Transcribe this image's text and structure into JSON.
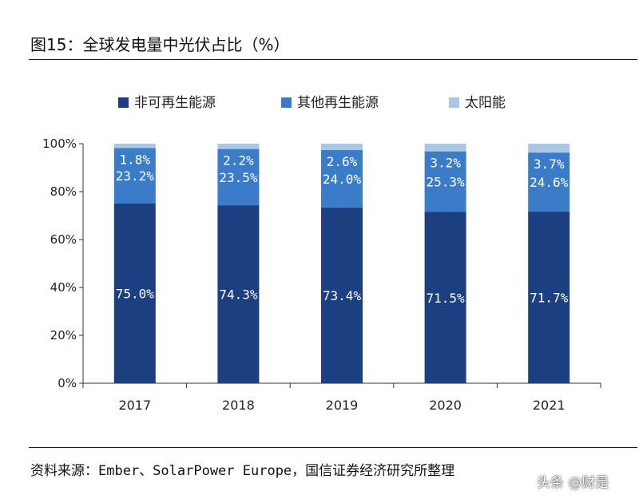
{
  "figure_title": "图15：全球发电量中光伏占比（%）",
  "source_note": "资料来源：Ember、SolarPower Europe，国信证券经济研究所整理",
  "watermark": "头条 @财是",
  "colors": {
    "non_renewable": "#1b3f80",
    "other_renewable": "#3a7cc8",
    "solar": "#a9c8e6",
    "axis": "#333333",
    "text": "#222222"
  },
  "chart_data": {
    "type": "bar",
    "stacked": true,
    "title": "",
    "xlabel": "",
    "ylabel": "",
    "ylim": [
      0,
      100
    ],
    "y_ticks": [
      "0%",
      "20%",
      "40%",
      "60%",
      "80%",
      "100%"
    ],
    "y_tick_values": [
      0,
      20,
      40,
      60,
      80,
      100
    ],
    "categories": [
      "2017",
      "2018",
      "2019",
      "2020",
      "2021"
    ],
    "legend_position": "top",
    "series": [
      {
        "name": "非可再生能源",
        "color_key": "non_renewable",
        "values": [
          75.0,
          74.3,
          73.4,
          71.5,
          71.7
        ],
        "labels": [
          "75.0%",
          "74.3%",
          "73.4%",
          "71.5%",
          "71.7%"
        ]
      },
      {
        "name": "其他再生能源",
        "color_key": "other_renewable",
        "values": [
          23.2,
          23.5,
          24.0,
          25.3,
          24.6
        ],
        "labels": [
          "23.2%",
          "23.5%",
          "24.0%",
          "25.3%",
          "24.6%"
        ]
      },
      {
        "name": "太阳能",
        "color_key": "solar",
        "values": [
          1.8,
          2.2,
          2.6,
          3.2,
          3.7
        ],
        "labels": [
          "1.8%",
          "2.2%",
          "2.6%",
          "3.2%",
          "3.7%"
        ]
      }
    ]
  }
}
